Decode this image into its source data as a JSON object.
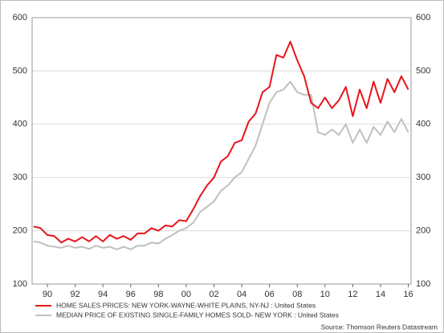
{
  "chart_data": {
    "type": "line",
    "x": [
      1989.0,
      1989.5,
      1990.0,
      1990.5,
      1991.0,
      1991.5,
      1992.0,
      1992.5,
      1993.0,
      1993.5,
      1994.0,
      1994.5,
      1995.0,
      1995.5,
      1996.0,
      1996.5,
      1997.0,
      1997.5,
      1998.0,
      1998.5,
      1999.0,
      1999.5,
      2000.0,
      2000.5,
      2001.0,
      2001.5,
      2002.0,
      2002.5,
      2003.0,
      2003.5,
      2004.0,
      2004.5,
      2005.0,
      2005.5,
      2006.0,
      2006.5,
      2007.0,
      2007.5,
      2008.0,
      2008.5,
      2009.0,
      2009.5,
      2010.0,
      2010.5,
      2011.0,
      2011.5,
      2012.0,
      2012.5,
      2013.0,
      2013.5,
      2014.0,
      2014.5,
      2015.0,
      2015.5,
      2016.0
    ],
    "series": [
      {
        "name": "HOME SALES PRICES: NEW YORK-WAYNE-WHITE PLAINS, NY-NJ : United States",
        "color": "#e8141c",
        "values": [
          208,
          205,
          192,
          190,
          178,
          185,
          180,
          188,
          180,
          190,
          180,
          192,
          185,
          190,
          183,
          195,
          195,
          205,
          200,
          210,
          208,
          220,
          218,
          240,
          265,
          285,
          300,
          330,
          340,
          365,
          370,
          405,
          420,
          460,
          470,
          530,
          525,
          555,
          520,
          490,
          440,
          430,
          450,
          430,
          445,
          470,
          415,
          465,
          430,
          480,
          440,
          485,
          460,
          490,
          465
        ]
      },
      {
        "name": "MEDIAN PRICE OF EXISTING SINGLE-FAMILY HOMES SOLD- NEW YORK : United States",
        "color": "#c0c0c0",
        "values": [
          180,
          178,
          172,
          170,
          168,
          172,
          168,
          170,
          166,
          172,
          168,
          170,
          165,
          170,
          165,
          172,
          172,
          178,
          176,
          185,
          192,
          200,
          205,
          215,
          235,
          245,
          255,
          275,
          285,
          300,
          310,
          335,
          360,
          400,
          440,
          460,
          465,
          480,
          460,
          455,
          455,
          385,
          380,
          390,
          380,
          400,
          365,
          390,
          365,
          395,
          380,
          405,
          385,
          410,
          385
        ]
      }
    ],
    "xlim": [
      1988.9,
      2016.2
    ],
    "xticks": [
      {
        "value": 1990,
        "label": "90"
      },
      {
        "value": 1992,
        "label": "92"
      },
      {
        "value": 1994,
        "label": "94"
      },
      {
        "value": 1996,
        "label": "96"
      },
      {
        "value": 1998,
        "label": "98"
      },
      {
        "value": 2000,
        "label": "00"
      },
      {
        "value": 2002,
        "label": "02"
      },
      {
        "value": 2004,
        "label": "04"
      },
      {
        "value": 2006,
        "label": "06"
      },
      {
        "value": 2008,
        "label": "08"
      },
      {
        "value": 2010,
        "label": "10"
      },
      {
        "value": 2012,
        "label": "12"
      },
      {
        "value": 2014,
        "label": "14"
      },
      {
        "value": 2016,
        "label": "16"
      }
    ],
    "ylim": [
      100,
      600
    ],
    "yticks": [
      100,
      200,
      300,
      400,
      500,
      600
    ],
    "y2lim": [
      100,
      600
    ],
    "y2ticks": [
      100,
      200,
      300,
      400,
      500,
      600
    ],
    "grid": true,
    "source": "Source: Thomson Reuters Datastream"
  }
}
